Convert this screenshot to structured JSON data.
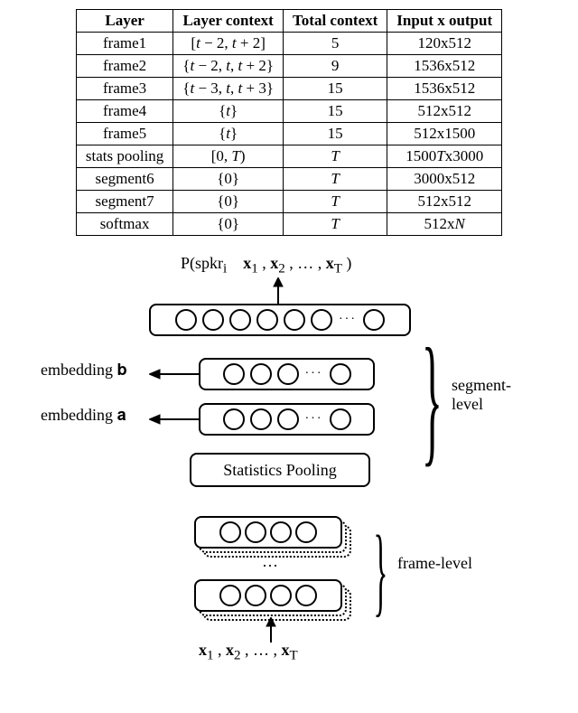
{
  "table": {
    "columns": [
      "Layer",
      "Layer context",
      "Total context",
      "Input x output"
    ],
    "rows": [
      [
        "frame1",
        "[t − 2, t + 2]",
        "5",
        "120x512"
      ],
      [
        "frame2",
        "{t − 2, t, t + 2}",
        "9",
        "1536x512"
      ],
      [
        "frame3",
        "{t − 3, t, t + 3}",
        "15",
        "1536x512"
      ],
      [
        "frame4",
        "{t}",
        "15",
        "512x512"
      ],
      [
        "frame5",
        "{t}",
        "15",
        "512x1500"
      ],
      [
        "stats pooling",
        "[0, T)",
        "T",
        "1500Tx3000"
      ],
      [
        "segment6",
        "{0}",
        "T",
        "3000x512"
      ],
      [
        "segment7",
        "{0}",
        "T",
        "512x512"
      ],
      [
        "softmax",
        "{0}",
        "T",
        "512xN"
      ]
    ]
  },
  "diagram": {
    "top_label": "P(spkr",
    "top_label_sub": "i",
    "top_label_mid": "𝐱",
    "top_vec": "𝐱₁ , 𝐱₂ , … , 𝐱",
    "top_vec_T": "T",
    "emb_b": "embedding 𝐛",
    "emb_a": "embedding 𝐚",
    "stats_pool": "Statistics Pooling",
    "seg_level": "segment-",
    "seg_level2": "level",
    "frame_level": "frame-level",
    "bottom_vec": "𝐱₁ , 𝐱₂ , … , 𝐱",
    "bottom_vec_T": "T"
  }
}
